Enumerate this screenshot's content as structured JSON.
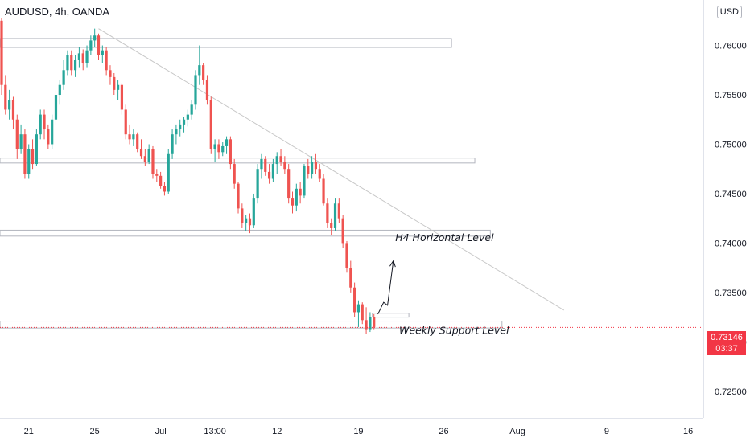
{
  "header": {
    "symbol": "AUDUSD, 4h, OANDA",
    "currency_button": "USD"
  },
  "last_price": {
    "value": "0.73146",
    "countdown": "03:37",
    "color": "#f23645"
  },
  "colors": {
    "up": "#26a69a",
    "down": "#ef5350",
    "zone_border": "#b2b5be",
    "trendline": "#c8c8c8",
    "axis_text": "#131722"
  },
  "chart_data": {
    "type": "candlestick",
    "ylim": [
      0.7223,
      0.7646
    ],
    "y_ticks": [
      0.725,
      0.73,
      0.735,
      0.74,
      0.745,
      0.75,
      0.755,
      0.76
    ],
    "y_tick_labels": [
      "0.72500",
      "0.73000",
      "0.73500",
      "0.74000",
      "0.74500",
      "0.75000",
      "0.75500",
      "0.76000"
    ],
    "x_ticks": [
      {
        "label": "21",
        "bar": 7
      },
      {
        "label": "25",
        "bar": 24
      },
      {
        "label": "Jul",
        "bar": 41
      },
      {
        "label": "13:00",
        "bar": 55
      },
      {
        "label": "12",
        "bar": 71
      },
      {
        "label": "19",
        "bar": 92
      },
      {
        "label": "26",
        "bar": 114
      },
      {
        "label": "Aug",
        "bar": 133
      },
      {
        "label": "9",
        "bar": 156
      },
      {
        "label": "16",
        "bar": 177
      }
    ],
    "zones": [
      {
        "name": "resistance-zone",
        "bar_start": 0,
        "bar_end": 116,
        "top": 0.7607,
        "bottom": 0.7598
      },
      {
        "name": "middle-zone",
        "bar_start": 0,
        "bar_end": 122,
        "top": 0.7486,
        "bottom": 0.7481
      },
      {
        "name": "h4-level-zone",
        "bar_start": 0,
        "bar_end": 126,
        "top": 0.7413,
        "bottom": 0.7407
      },
      {
        "name": "weekly-support-zone",
        "bar_start": 0,
        "bar_end": 129,
        "top": 0.7321,
        "bottom": 0.7314
      },
      {
        "name": "small-zone",
        "bar_start": 96,
        "bar_end": 105,
        "top": 0.7329,
        "bottom": 0.7325
      }
    ],
    "trendline": {
      "bar_start": 25,
      "y_start": 0.7617,
      "bar_end": 145,
      "y_end": 0.7332
    },
    "arrow": {
      "points": [
        [
          97,
          0.7328
        ],
        [
          98.5,
          0.734
        ],
        [
          99.5,
          0.7337
        ],
        [
          101,
          0.7382
        ]
      ]
    },
    "annotations": [
      {
        "name": "h4-level-label",
        "text": "H4 Horizontal Level",
        "bar": 101.5,
        "y": 0.7402
      },
      {
        "name": "weekly-support-label",
        "text": "Weekly Support Level",
        "bar": 102.5,
        "y": 0.7308
      }
    ],
    "last_price": 0.73146,
    "candles": [
      [
        0.7625,
        0.7628,
        0.755,
        0.756
      ],
      [
        0.756,
        0.757,
        0.753,
        0.7535
      ],
      [
        0.7535,
        0.7555,
        0.7525,
        0.7545
      ],
      [
        0.7545,
        0.7548,
        0.7515,
        0.7525
      ],
      [
        0.7525,
        0.753,
        0.7485,
        0.7495
      ],
      [
        0.7495,
        0.752,
        0.749,
        0.751
      ],
      [
        0.751,
        0.7515,
        0.7465,
        0.747
      ],
      [
        0.747,
        0.75,
        0.7465,
        0.7495
      ],
      [
        0.7495,
        0.7505,
        0.7475,
        0.748
      ],
      [
        0.748,
        0.7515,
        0.7478,
        0.751
      ],
      [
        0.751,
        0.7535,
        0.7505,
        0.753
      ],
      [
        0.753,
        0.7535,
        0.7505,
        0.7515
      ],
      [
        0.7515,
        0.752,
        0.7495,
        0.75
      ],
      [
        0.75,
        0.753,
        0.7495,
        0.7525
      ],
      [
        0.7525,
        0.7555,
        0.752,
        0.755
      ],
      [
        0.755,
        0.7565,
        0.754,
        0.756
      ],
      [
        0.756,
        0.7585,
        0.7555,
        0.7575
      ],
      [
        0.7575,
        0.7595,
        0.757,
        0.759
      ],
      [
        0.759,
        0.7595,
        0.757,
        0.7575
      ],
      [
        0.7575,
        0.759,
        0.7568,
        0.7585
      ],
      [
        0.7585,
        0.7598,
        0.7578,
        0.7592
      ],
      [
        0.7592,
        0.7596,
        0.7575,
        0.7582
      ],
      [
        0.7582,
        0.76,
        0.7578,
        0.7595
      ],
      [
        0.7595,
        0.761,
        0.759,
        0.7605
      ],
      [
        0.7605,
        0.7617,
        0.7598,
        0.761
      ],
      [
        0.761,
        0.7612,
        0.7585,
        0.759
      ],
      [
        0.759,
        0.76,
        0.7582,
        0.7595
      ],
      [
        0.7595,
        0.7598,
        0.757,
        0.7575
      ],
      [
        0.7575,
        0.758,
        0.756,
        0.7568
      ],
      [
        0.7568,
        0.7572,
        0.755,
        0.7555
      ],
      [
        0.7555,
        0.7565,
        0.7545,
        0.756
      ],
      [
        0.756,
        0.7562,
        0.753,
        0.7535
      ],
      [
        0.7535,
        0.754,
        0.7505,
        0.751
      ],
      [
        0.751,
        0.752,
        0.75,
        0.7505
      ],
      [
        0.7505,
        0.7515,
        0.7498,
        0.751
      ],
      [
        0.751,
        0.7512,
        0.7492,
        0.7495
      ],
      [
        0.7495,
        0.7505,
        0.7485,
        0.7488
      ],
      [
        0.7488,
        0.7495,
        0.7478,
        0.7482
      ],
      [
        0.7482,
        0.75,
        0.748,
        0.7495
      ],
      [
        0.7495,
        0.7498,
        0.7465,
        0.747
      ],
      [
        0.747,
        0.7475,
        0.7462,
        0.7468
      ],
      [
        0.7468,
        0.7472,
        0.7455,
        0.7458
      ],
      [
        0.7458,
        0.7462,
        0.7448,
        0.7452
      ],
      [
        0.7452,
        0.7495,
        0.745,
        0.749
      ],
      [
        0.749,
        0.7515,
        0.7485,
        0.751
      ],
      [
        0.751,
        0.752,
        0.75,
        0.7515
      ],
      [
        0.7515,
        0.7525,
        0.7508,
        0.752
      ],
      [
        0.752,
        0.7528,
        0.7512,
        0.7525
      ],
      [
        0.7525,
        0.7535,
        0.7518,
        0.753
      ],
      [
        0.753,
        0.7545,
        0.7525,
        0.754
      ],
      [
        0.754,
        0.7575,
        0.7535,
        0.757
      ],
      [
        0.757,
        0.76,
        0.756,
        0.758
      ],
      [
        0.758,
        0.7582,
        0.756,
        0.7565
      ],
      [
        0.7565,
        0.757,
        0.754,
        0.7545
      ],
      [
        0.7545,
        0.7548,
        0.749,
        0.7495
      ],
      [
        0.7495,
        0.7505,
        0.7482,
        0.75
      ],
      [
        0.75,
        0.7505,
        0.7485,
        0.7492
      ],
      [
        0.7492,
        0.7502,
        0.7488,
        0.7498
      ],
      [
        0.7498,
        0.7508,
        0.749,
        0.7505
      ],
      [
        0.7505,
        0.7508,
        0.7475,
        0.748
      ],
      [
        0.748,
        0.7485,
        0.7455,
        0.746
      ],
      [
        0.746,
        0.7462,
        0.743,
        0.7435
      ],
      [
        0.7435,
        0.744,
        0.7415,
        0.742
      ],
      [
        0.742,
        0.7428,
        0.7412,
        0.7425
      ],
      [
        0.7425,
        0.743,
        0.741,
        0.7418
      ],
      [
        0.7418,
        0.745,
        0.7415,
        0.7445
      ],
      [
        0.7445,
        0.748,
        0.744,
        0.7475
      ],
      [
        0.7475,
        0.749,
        0.7465,
        0.7485
      ],
      [
        0.7485,
        0.7488,
        0.7468,
        0.7472
      ],
      [
        0.7472,
        0.748,
        0.746,
        0.7465
      ],
      [
        0.7465,
        0.7485,
        0.7462,
        0.748
      ],
      [
        0.748,
        0.7492,
        0.747,
        0.7488
      ],
      [
        0.7488,
        0.7495,
        0.7478,
        0.7482
      ],
      [
        0.7482,
        0.7488,
        0.747,
        0.7475
      ],
      [
        0.7475,
        0.748,
        0.744,
        0.7445
      ],
      [
        0.7445,
        0.7452,
        0.743,
        0.7438
      ],
      [
        0.7438,
        0.746,
        0.7432,
        0.7455
      ],
      [
        0.7455,
        0.7462,
        0.744,
        0.7448
      ],
      [
        0.7448,
        0.748,
        0.7445,
        0.7478
      ],
      [
        0.7478,
        0.7485,
        0.7465,
        0.747
      ],
      [
        0.747,
        0.7488,
        0.7465,
        0.7482
      ],
      [
        0.7482,
        0.749,
        0.747,
        0.7475
      ],
      [
        0.7475,
        0.748,
        0.7462,
        0.7465
      ],
      [
        0.7465,
        0.747,
        0.7438,
        0.744
      ],
      [
        0.744,
        0.7445,
        0.7415,
        0.742
      ],
      [
        0.742,
        0.7425,
        0.7408,
        0.7415
      ],
      [
        0.7415,
        0.7445,
        0.7412,
        0.744
      ],
      [
        0.744,
        0.7445,
        0.742,
        0.7425
      ],
      [
        0.7425,
        0.7428,
        0.7395,
        0.74
      ],
      [
        0.74,
        0.7402,
        0.737,
        0.7375
      ],
      [
        0.7375,
        0.7382,
        0.735,
        0.7355
      ],
      [
        0.7355,
        0.736,
        0.7325,
        0.733
      ],
      [
        0.733,
        0.7342,
        0.7315,
        0.7338
      ],
      [
        0.7338,
        0.734,
        0.7318,
        0.7322
      ],
      [
        0.7322,
        0.7335,
        0.7308,
        0.7312
      ],
      [
        0.7312,
        0.733,
        0.731,
        0.7325
      ],
      [
        0.7325,
        0.7328,
        0.7312,
        0.7315
      ]
    ]
  }
}
